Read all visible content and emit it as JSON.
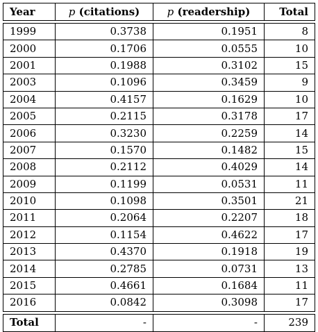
{
  "table": {
    "headers": {
      "year": "Year",
      "p_symbol": "p",
      "citations": "(citations)",
      "readership": "(readership)",
      "total": "Total"
    },
    "rows": [
      {
        "year": "1999",
        "citations": "0.3738",
        "readership": "0.1951",
        "total": "8"
      },
      {
        "year": "2000",
        "citations": "0.1706",
        "readership": "0.0555",
        "total": "10"
      },
      {
        "year": "2001",
        "citations": "0.1988",
        "readership": "0.3102",
        "total": "15"
      },
      {
        "year": "2003",
        "citations": "0.1096",
        "readership": "0.3459",
        "total": "9"
      },
      {
        "year": "2004",
        "citations": "0.4157",
        "readership": "0.1629",
        "total": "10"
      },
      {
        "year": "2005",
        "citations": "0.2115",
        "readership": "0.3178",
        "total": "17"
      },
      {
        "year": "2006",
        "citations": "0.3230",
        "readership": "0.2259",
        "total": "14"
      },
      {
        "year": "2007",
        "citations": "0.1570",
        "readership": "0.1482",
        "total": "15"
      },
      {
        "year": "2008",
        "citations": "0.2112",
        "readership": "0.4029",
        "total": "14"
      },
      {
        "year": "2009",
        "citations": "0.1199",
        "readership": "0.0531",
        "total": "11"
      },
      {
        "year": "2010",
        "citations": "0.1098",
        "readership": "0.3501",
        "total": "21"
      },
      {
        "year": "2011",
        "citations": "0.2064",
        "readership": "0.2207",
        "total": "18"
      },
      {
        "year": "2012",
        "citations": "0.1154",
        "readership": "0.4622",
        "total": "17"
      },
      {
        "year": "2013",
        "citations": "0.4370",
        "readership": "0.1918",
        "total": "19"
      },
      {
        "year": "2014",
        "citations": "0.2785",
        "readership": "0.0731",
        "total": "13"
      },
      {
        "year": "2015",
        "citations": "0.4661",
        "readership": "0.1684",
        "total": "11"
      },
      {
        "year": "2016",
        "citations": "0.0842",
        "readership": "0.3098",
        "total": "17"
      }
    ],
    "footer": {
      "label": "Total",
      "citations": "-",
      "readership": "-",
      "total": "239"
    }
  }
}
